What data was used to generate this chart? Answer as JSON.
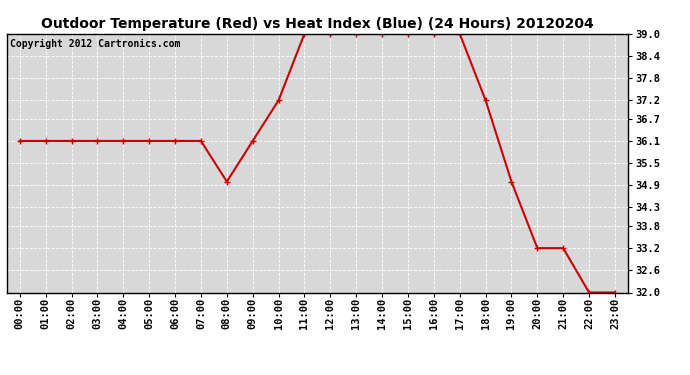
{
  "title": "Outdoor Temperature (Red) vs Heat Index (Blue) (24 Hours) 20120204",
  "copyright_text": "Copyright 2012 Cartronics.com",
  "x_labels": [
    "00:00",
    "01:00",
    "02:00",
    "03:00",
    "04:00",
    "05:00",
    "06:00",
    "07:00",
    "08:00",
    "09:00",
    "10:00",
    "11:00",
    "12:00",
    "13:00",
    "14:00",
    "15:00",
    "16:00",
    "17:00",
    "18:00",
    "19:00",
    "20:00",
    "21:00",
    "22:00",
    "23:00"
  ],
  "temp_values": [
    36.1,
    36.1,
    36.1,
    36.1,
    36.1,
    36.1,
    36.1,
    36.1,
    35.0,
    36.1,
    37.2,
    39.0,
    39.0,
    39.0,
    39.0,
    39.0,
    39.0,
    39.0,
    37.2,
    35.0,
    33.2,
    33.2,
    32.0,
    32.0
  ],
  "ylim_min": 32.0,
  "ylim_max": 39.0,
  "yticks": [
    32.0,
    32.6,
    33.2,
    33.8,
    34.3,
    34.9,
    35.5,
    36.1,
    36.7,
    37.2,
    37.8,
    38.4,
    39.0
  ],
  "line_color": "#cc0000",
  "marker": "+",
  "marker_size": 5,
  "bg_color": "#ffffff",
  "plot_bg_color": "#d8d8d8",
  "grid_color": "#ffffff",
  "title_fontsize": 10,
  "tick_fontsize": 7.5,
  "copyright_fontsize": 7
}
